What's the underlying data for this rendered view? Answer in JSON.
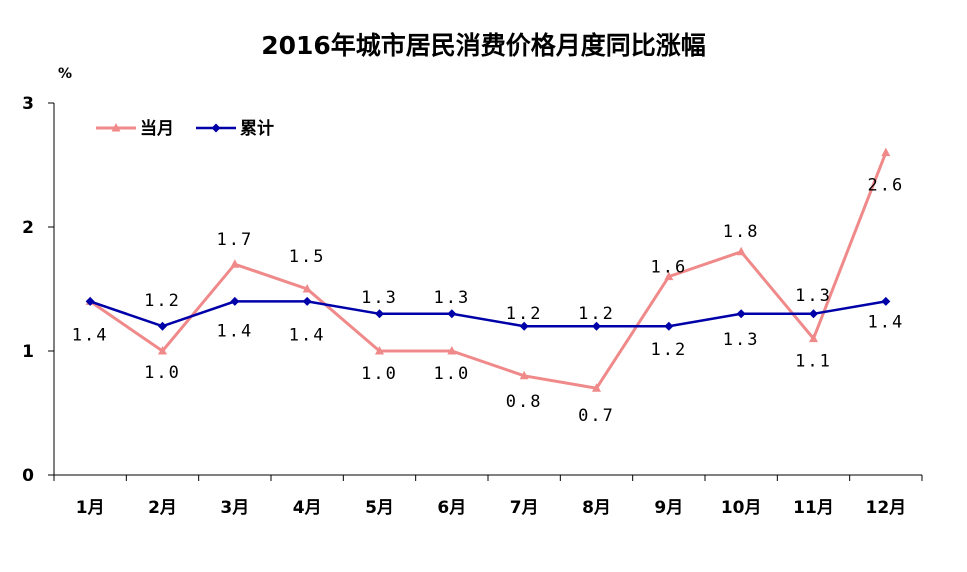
{
  "chart_data": {
    "type": "line",
    "title": "2016年城市居民消费价格月度同比涨幅",
    "unit": "%",
    "categories": [
      "1月",
      "2月",
      "3月",
      "4月",
      "5月",
      "6月",
      "7月",
      "8月",
      "9月",
      "10月",
      "11月",
      "12月"
    ],
    "ylim": [
      0,
      3
    ],
    "yticks": [
      "0",
      "1",
      "2",
      "3"
    ],
    "grid": false,
    "legend_position": "top-left",
    "series": [
      {
        "name": "当月",
        "color": "#f08a8a",
        "marker": "triangle",
        "values": [
          1.4,
          1.0,
          1.7,
          1.5,
          1.0,
          1.0,
          0.8,
          0.7,
          1.6,
          1.8,
          1.1,
          2.6
        ],
        "labels": [
          "1.4",
          "1.0",
          "1.7",
          "1.5",
          "1.0",
          "1.0",
          "0.8",
          "0.7",
          "1.6",
          "1.8",
          "1.1",
          "2.6"
        ]
      },
      {
        "name": "累计",
        "color": "#0000a8",
        "marker": "diamond",
        "values": [
          1.4,
          1.2,
          1.4,
          1.4,
          1.3,
          1.3,
          1.2,
          1.2,
          1.2,
          1.3,
          1.3,
          1.4
        ],
        "labels": [
          "",
          "1.2",
          "1.4",
          "1.4",
          "1.3",
          "1.3",
          "1.2",
          "1.2",
          "1.2",
          "1.3",
          "1.3",
          "1.4"
        ]
      }
    ]
  }
}
